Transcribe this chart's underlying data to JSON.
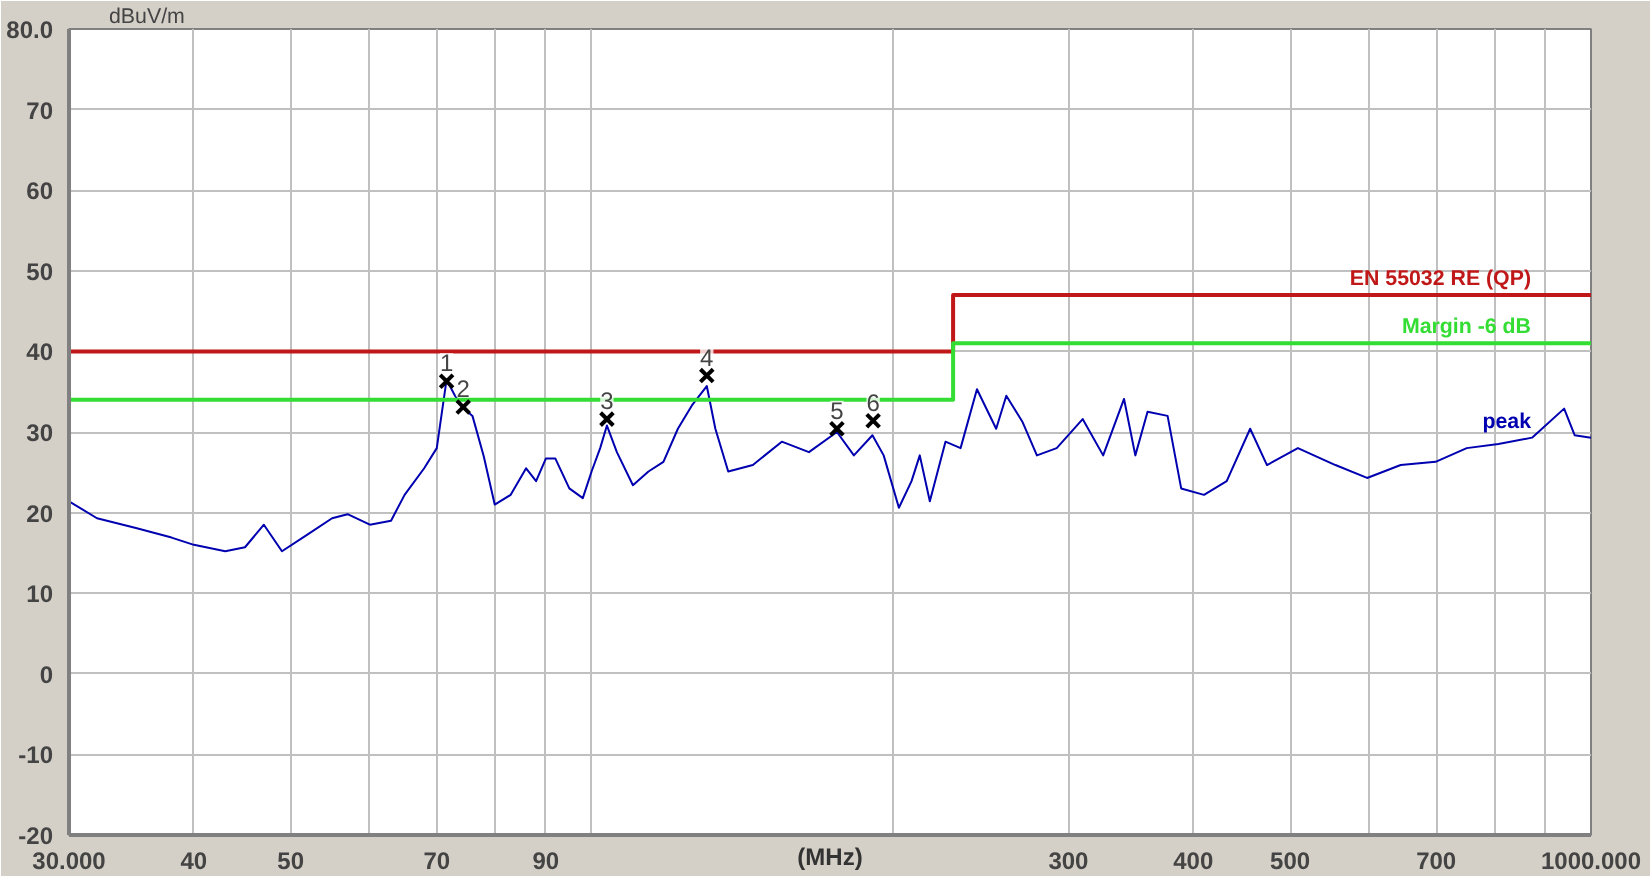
{
  "chart_data": {
    "type": "line",
    "xlabel": "(MHz)",
    "ylabel": "dBuV/m",
    "log": "x",
    "grid": true,
    "legend": false,
    "xlim": [
      30,
      1000
    ],
    "ylim": [
      -20,
      80
    ],
    "xticks": [
      {
        "value": 30,
        "label": "30.000"
      },
      40,
      50,
      {
        "value": 60,
        "label": null
      },
      70,
      {
        "value": 80,
        "label": null
      },
      90,
      {
        "value": 100,
        "label": null
      },
      {
        "value": 200,
        "label": null
      },
      300,
      400,
      500,
      {
        "value": 600,
        "label": null
      },
      700,
      {
        "value": 800,
        "label": null
      },
      {
        "value": 900,
        "label": null
      },
      {
        "value": 1000,
        "label": "1000.000"
      }
    ],
    "yticks": [
      -20,
      -10,
      0,
      10,
      20,
      30,
      40,
      50,
      60,
      70,
      {
        "value": 80,
        "label": "80.0"
      }
    ],
    "series": [
      {
        "name": "peak",
        "color": "#0000b0",
        "marker": "none",
        "line_style": "solid",
        "x": [
          30,
          32,
          35,
          38,
          40,
          43,
          45,
          47,
          49,
          52,
          55,
          57,
          60,
          63,
          65,
          68,
          70,
          71.6,
          73,
          74.4,
          76,
          78,
          80,
          83,
          86,
          88,
          90,
          92,
          95,
          98,
          100,
          102,
          103.6,
          106,
          110,
          114,
          118,
          122,
          126,
          130.4,
          133,
          137,
          145,
          155,
          165,
          176,
          183,
          191,
          196,
          203,
          209,
          213,
          218,
          226,
          234,
          243,
          254,
          260,
          270,
          279,
          292,
          310,
          325,
          341,
          350,
          360,
          377,
          389,
          410,
          432,
          456,
          474,
          509,
          555,
          597,
          645,
          699,
          751,
          808,
          873,
          940,
          963,
          1000
        ],
        "values": [
          21.4,
          19.3,
          18.1,
          16.9,
          16,
          15.2,
          15.7,
          18.5,
          15.2,
          17.3,
          19.3,
          19.8,
          18.5,
          19,
          22.2,
          25.5,
          28,
          36.5,
          34.5,
          33,
          32,
          27,
          21,
          22.2,
          25.5,
          23.9,
          26.7,
          26.7,
          23,
          21.8,
          25.1,
          28,
          30.8,
          27.5,
          23.4,
          25.1,
          26.3,
          30.4,
          33.3,
          35.7,
          30.4,
          25.1,
          25.9,
          28.8,
          27.5,
          30,
          27.1,
          29.6,
          27.1,
          20.6,
          23.9,
          27.1,
          21.4,
          28.8,
          28,
          35.3,
          30.4,
          34.5,
          31.2,
          27.1,
          28,
          31.6,
          27.1,
          34.1,
          27.1,
          32.5,
          32,
          23,
          22.2,
          23.9,
          30.4,
          25.9,
          28,
          25.9,
          24.3,
          25.9,
          26.3,
          28,
          28.5,
          29.3,
          32.9,
          29.6,
          29.3
        ]
      },
      {
        "name": "EN 55032 RE (QP)",
        "color": "#c01818",
        "marker": "none",
        "line_style": "solid",
        "x": [
          30,
          230,
          230,
          1000
        ],
        "values": [
          40,
          40,
          47,
          47
        ]
      },
      {
        "name": "Margin -6 dB",
        "color": "#33dd33",
        "marker": "none",
        "line_style": "solid",
        "x": [
          30,
          230,
          230,
          1000
        ],
        "values": [
          34,
          34,
          41,
          41
        ]
      },
      {
        "color": "#000000",
        "type": "scatter",
        "marker": "cross",
        "x": [
          71.6,
          74.4,
          103.6,
          130.4,
          176,
          191.3
        ],
        "values": [
          36.3,
          33.1,
          31.6,
          37.0,
          30.4,
          31.4
        ]
      }
    ],
    "annotations": [
      {
        "text": "1",
        "x": 71.6,
        "y": 36.3
      },
      {
        "text": "2",
        "x": 74.4,
        "y": 33.1
      },
      {
        "text": "3",
        "x": 103.6,
        "y": 31.6
      },
      {
        "text": "4",
        "x": 130.4,
        "y": 37.0
      },
      {
        "text": "5",
        "x": 176,
        "y": 30.4
      },
      {
        "text": "6",
        "x": 191.3,
        "y": 31.4
      }
    ]
  }
}
